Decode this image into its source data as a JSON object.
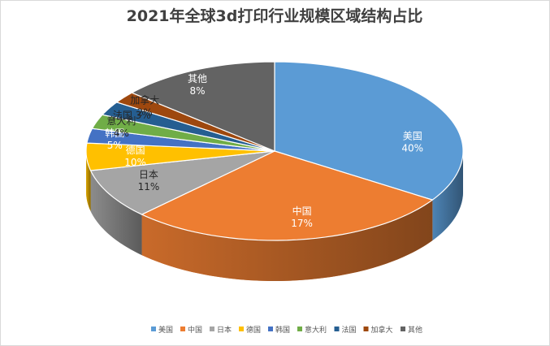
{
  "chart_data": {
    "type": "pie",
    "title": "2021年全球3d打印行业规模区域结构占比",
    "slices": [
      {
        "name": "美国",
        "value": 40,
        "label": "40%",
        "color": "#5b9bd5",
        "label_color": "#ffffff"
      },
      {
        "name": "中国",
        "value": 17,
        "label": "17%",
        "color": "#ed7d31",
        "label_color": "#ffffff"
      },
      {
        "name": "日本",
        "value": 11,
        "label": "11%",
        "color": "#a5a5a5",
        "label_color": "#262626"
      },
      {
        "name": "德国",
        "value": 10,
        "label": "10%",
        "color": "#ffc000",
        "label_color": "#ffffff"
      },
      {
        "name": "韩国",
        "value": 5,
        "label": "5%",
        "color": "#4472c4",
        "label_color": "#ffffff"
      },
      {
        "name": "意大利",
        "value": 4,
        "label": "4%",
        "color": "#70ad47",
        "label_color": "#262626"
      },
      {
        "name": "法国",
        "value": 3,
        "label": "3%",
        "color": "#255e91",
        "label_color": "#262626"
      },
      {
        "name": "加拿大",
        "value": 2,
        "label": "2%",
        "color": "#9e480e",
        "label_color": "#262626"
      },
      {
        "name": "其他",
        "value": 8,
        "label": "8%",
        "color": "#636363",
        "label_color": "#ffffff"
      }
    ],
    "legend_position": "bottom"
  }
}
